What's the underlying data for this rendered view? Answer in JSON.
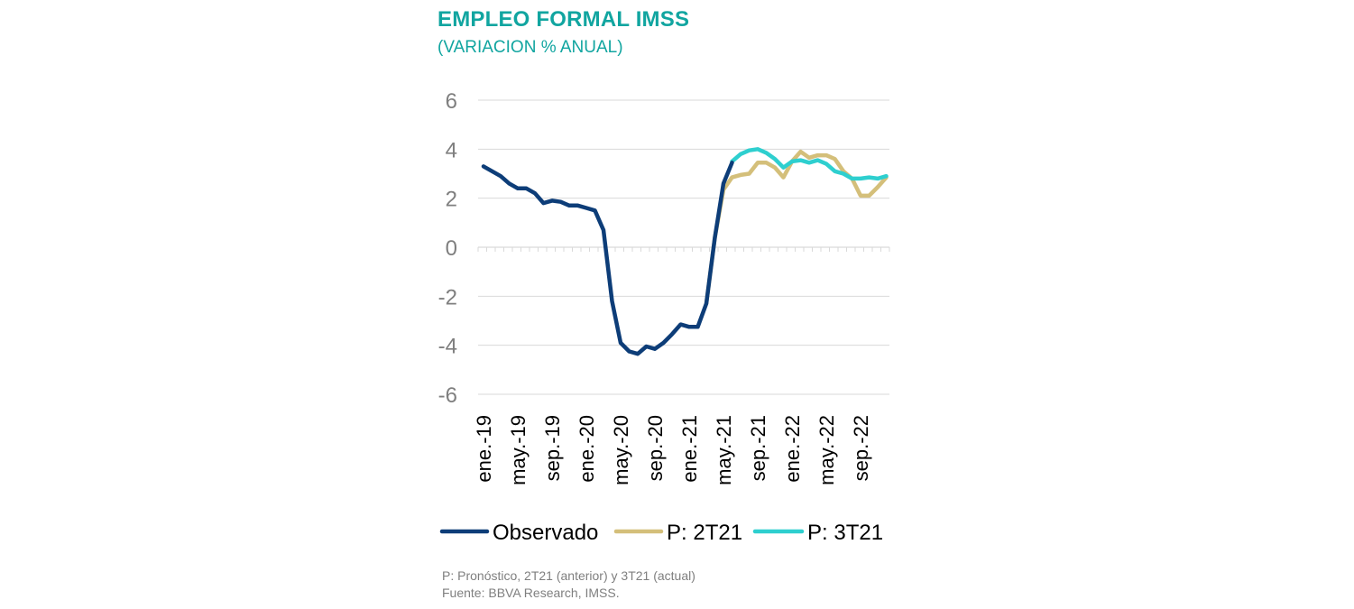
{
  "title": "EMPLEO FORMAL IMSS",
  "subtitle": "(VARIACION % ANUAL)",
  "notes": {
    "line1": "P: Pronóstico, 2T21 (anterior) y 3T21 (actual)",
    "line2": "Fuente: BBVA Research, IMSS."
  },
  "chart_data": {
    "type": "line",
    "title": "EMPLEO FORMAL IMSS",
    "subtitle": "(VARIACION % ANUAL)",
    "xlabel": "",
    "ylabel": "",
    "ylim": [
      -6,
      6
    ],
    "yticks": [
      6,
      4,
      2,
      0,
      -2,
      -4,
      -6
    ],
    "ytick_labels": [
      "6",
      "4",
      "2",
      "0",
      "-2",
      "-4",
      "-6"
    ],
    "x_start": "ene.-19",
    "n_months": 48,
    "xtick_labels": [
      "ene.-19",
      "may.-19",
      "sep.-19",
      "ene.-20",
      "may.-20",
      "sep.-20",
      "ene.-21",
      "may.-21",
      "sep.-21",
      "ene.-22",
      "may.-22",
      "sep.-22"
    ],
    "grid": true,
    "legend_position": "bottom",
    "series": [
      {
        "name": "Observado",
        "color": "#0d3d78",
        "start_index": 0,
        "values": [
          3.3,
          3.1,
          2.9,
          2.6,
          2.4,
          2.4,
          2.2,
          1.8,
          1.9,
          1.85,
          1.7,
          1.7,
          1.6,
          1.5,
          0.7,
          -2.2,
          -3.9,
          -4.25,
          -4.35,
          -4.05,
          -4.15,
          -3.9,
          -3.55,
          -3.15,
          -3.25,
          -3.25,
          -2.3,
          0.4,
          2.6,
          3.45
        ]
      },
      {
        "name": "P: 2T21",
        "color": "#d4bf7a",
        "start_index": 26,
        "values": [
          -2.3,
          0.4,
          2.35,
          2.85,
          2.95,
          3.0,
          3.45,
          3.45,
          3.25,
          2.85,
          3.5,
          3.9,
          3.65,
          3.75,
          3.75,
          3.6,
          3.1,
          2.8,
          2.1,
          2.1,
          2.45,
          2.85
        ]
      },
      {
        "name": "P: 3T21",
        "color": "#2ecfcf",
        "start_index": 29,
        "values": [
          3.5,
          3.8,
          3.95,
          4.0,
          3.85,
          3.6,
          3.25,
          3.5,
          3.55,
          3.45,
          3.55,
          3.4,
          3.1,
          3.0,
          2.8,
          2.8,
          2.85,
          2.8,
          2.9
        ]
      }
    ]
  }
}
